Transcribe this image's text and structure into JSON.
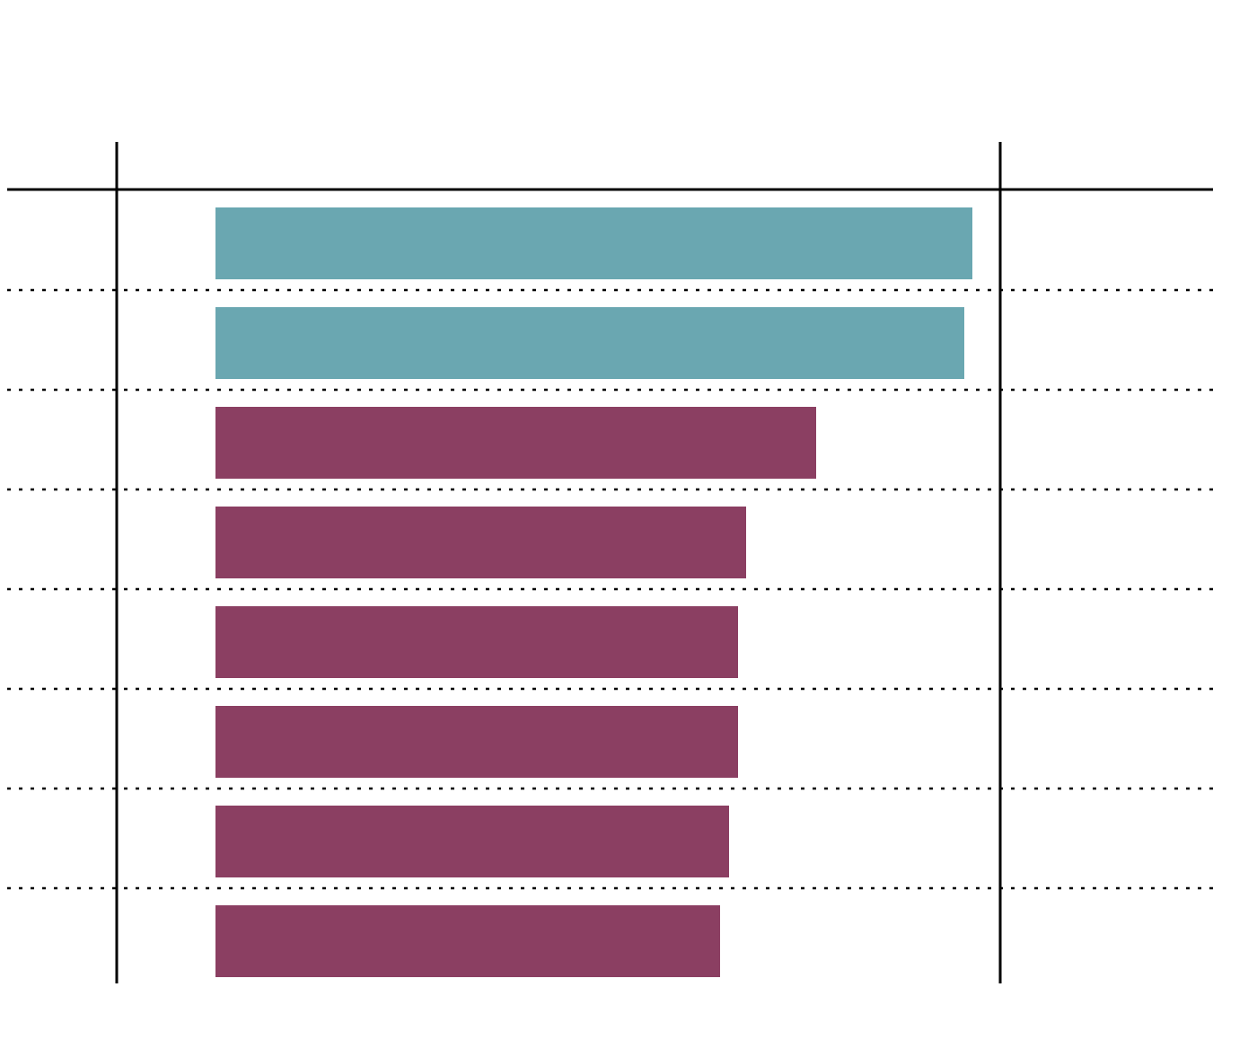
{
  "chart_data": {
    "type": "bar",
    "orientation": "horizontal",
    "values": [
      843,
      834,
      669,
      591,
      582,
      582,
      572,
      562
    ],
    "colors": [
      "#6aa7b1",
      "#6aa7b1",
      "#8b3f62",
      "#8b3f62",
      "#8b3f62",
      "#8b3f62",
      "#8b3f62",
      "#8b3f62"
    ]
  }
}
